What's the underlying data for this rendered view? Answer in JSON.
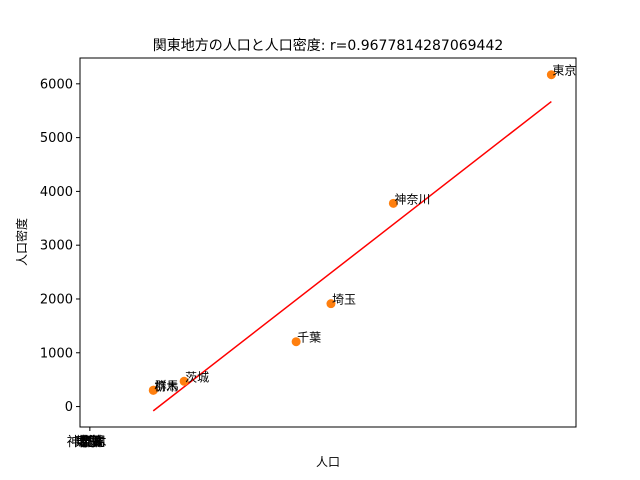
{
  "chart_data": {
    "type": "scatter",
    "title": "関東地方の人口と人口密度: r=0.9677814287069442",
    "xlabel": "人口",
    "ylabel": "人口密度",
    "ylim": [
      -380,
      6480
    ],
    "y_ticks": [
      0,
      1000,
      2000,
      3000,
      4000,
      5000,
      6000
    ],
    "x_tick_labels": [
      "神奈川",
      "東京",
      "埼玉",
      "千葉",
      "茨城",
      "群馬",
      "栃木"
    ],
    "x_tick_value": 0,
    "xlim": [
      -300,
      14800
    ],
    "points": [
      {
        "name": "東京",
        "x": 14050,
        "y": 6169
      },
      {
        "name": "神奈川",
        "x": 9240,
        "y": 3778
      },
      {
        "name": "埼玉",
        "x": 7340,
        "y": 1913
      },
      {
        "name": "千葉",
        "x": 6280,
        "y": 1206
      },
      {
        "name": "茨城",
        "x": 2870,
        "y": 470
      },
      {
        "name": "群馬",
        "x": 1940,
        "y": 306
      },
      {
        "name": "栃木",
        "x": 1930,
        "y": 302
      }
    ],
    "fit_line": {
      "x": [
        1930,
        14050
      ],
      "y": [
        -80,
        5670
      ]
    },
    "colors": {
      "points": "#ff7f0e",
      "fit_line": "#ff0000"
    }
  }
}
